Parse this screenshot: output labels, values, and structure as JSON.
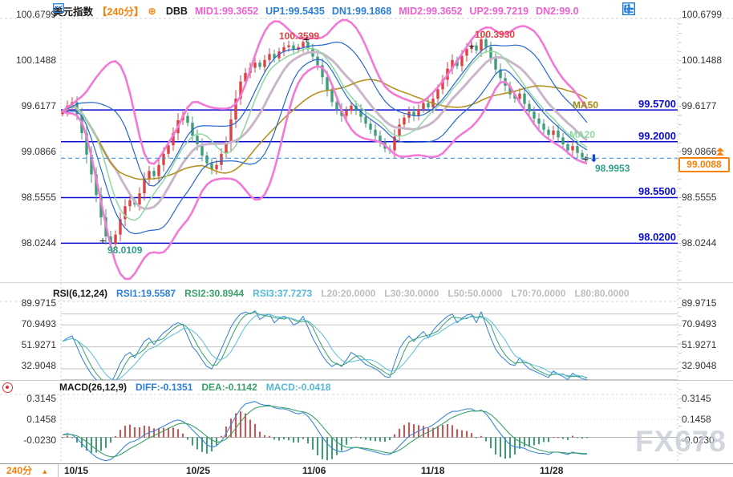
{
  "header": {
    "title": "美元指数",
    "interval": "【240分】",
    "collapse_glyph": "⊕",
    "indicator_name": "DBB",
    "mid1": "MID1:99.3652",
    "up1": "UP1:99.5435",
    "dn1": "DN1:99.1868",
    "mid2": "MID2:99.3652",
    "up2": "UP2:99.7219",
    "dn2": "DN2:99.0"
  },
  "rsi_header": {
    "name": "RSI(6,12,24)",
    "rsi1": "RSI1:19.5587",
    "rsi2": "RSI2:30.8944",
    "rsi3": "RSI3:37.7273",
    "l20": "L20:20.0000",
    "l30": "L30:30.0000",
    "l50": "L50:50.0000",
    "l70": "L70:70.0000",
    "l80": "L80:80.0000"
  },
  "macd_header": {
    "name": "MACD(26,12,9)",
    "diff": "DIFF:-0.1351",
    "dea": "DEA:-0.1142",
    "macd": "MACD:-0.0418"
  },
  "axes": {
    "main": [
      "100.6799",
      "100.1488",
      "99.6177",
      "99.0866",
      "98.5555",
      "98.0244"
    ],
    "rsi": [
      "89.9715",
      "70.9493",
      "51.9271",
      "32.9048"
    ],
    "macd": [
      "0.3145",
      "0.1458",
      "-0.0230"
    ]
  },
  "price_box": "99.0088",
  "ma_labels": {
    "ma50": "MA50",
    "ma20": "MA20"
  },
  "footer": {
    "interval": "240分",
    "arrow": "▲",
    "dates": [
      "10/15",
      "10/25",
      "11/06",
      "11/18",
      "11/28"
    ]
  },
  "watermark": "FX678",
  "colors": {
    "up": "#d84444",
    "down": "#3f9e78",
    "band_outer": "#f279d8",
    "band_inner": "#2566cf",
    "mid_band": "#c9b6c9",
    "ma50": "#b3921f",
    "ma20": "#96d8a8",
    "level_blue": "#0b0bd0",
    "current_line": "#4090e0",
    "rsi1": "#2f7fd6",
    "rsi2": "#39a06a",
    "rsi3": "#5bbcd9",
    "macd_diff": "#3a86d6",
    "macd_dea": "#3aa06a",
    "hist_pos": "#d94f4f",
    "hist_neg": "#3aa071",
    "accent_orange": "#f5820a"
  },
  "chart_data": {
    "type": "candlestick+indicators",
    "symbol": "美元指数",
    "interval": "240分",
    "x_axis": {
      "tick_labels": [
        "10/15",
        "10/25",
        "11/06",
        "11/18",
        "11/28"
      ],
      "tick_x": [
        95,
        247,
        392,
        540,
        688
      ]
    },
    "main": {
      "y_ticks": [
        100.6799,
        100.1488,
        99.6177,
        99.0866,
        98.5555,
        98.0244
      ],
      "levels": [
        {
          "value": 99.57,
          "label": "99.5700"
        },
        {
          "value": 99.2,
          "label": "99.2000"
        },
        {
          "value": 98.55,
          "label": "98.5500"
        },
        {
          "value": 98.02,
          "label": "98.0200"
        }
      ],
      "current_price": 99.0088,
      "session_low": 98.9953,
      "annotations": [
        {
          "text": "100.3599",
          "kind": "high"
        },
        {
          "text": "100.3930",
          "kind": "high"
        },
        {
          "text": "98.0109",
          "kind": "low"
        },
        {
          "text": "98.9953",
          "kind": "low"
        }
      ],
      "bollinger": {
        "mid1": 99.3652,
        "up1": 99.5435,
        "dn1": 99.1868,
        "mid2": 99.3652,
        "up2": 99.7219,
        "dn2": 99.0
      },
      "close": [
        99.55,
        99.62,
        99.66,
        99.52,
        99.3,
        99.05,
        98.82,
        98.58,
        98.32,
        98.1,
        98.01,
        98.12,
        98.3,
        98.45,
        98.52,
        98.47,
        98.6,
        98.76,
        98.86,
        98.8,
        98.93,
        99.06,
        99.16,
        99.3,
        99.45,
        99.5,
        99.42,
        99.27,
        99.17,
        99.04,
        98.95,
        98.88,
        98.93,
        99.06,
        99.2,
        99.46,
        99.7,
        99.9,
        100.0,
        100.06,
        100.12,
        100.07,
        100.15,
        100.22,
        100.17,
        100.25,
        100.3,
        100.32,
        100.27,
        100.3,
        100.36,
        100.29,
        100.19,
        100.09,
        99.95,
        99.8,
        99.66,
        99.58,
        99.5,
        99.56,
        99.62,
        99.57,
        99.49,
        99.41,
        99.34,
        99.27,
        99.2,
        99.12,
        99.1,
        99.26,
        99.4,
        99.48,
        99.55,
        99.5,
        99.58,
        99.65,
        99.6,
        99.7,
        99.81,
        99.92,
        100.05,
        100.15,
        100.08,
        100.2,
        100.28,
        100.32,
        100.26,
        100.39,
        100.3,
        100.17,
        100.04,
        99.94,
        99.85,
        99.75,
        99.7,
        99.76,
        99.64,
        99.55,
        99.47,
        99.41,
        99.34,
        99.28,
        99.33,
        99.25,
        99.17,
        99.1,
        99.15,
        99.07,
        99.02,
        99.01
      ]
    },
    "rsi": {
      "params": "(6,12,24)",
      "rsi1_last": 19.5587,
      "rsi2_last": 30.8944,
      "rsi3_last": 37.7273,
      "guide_levels": [
        20,
        30,
        50,
        70,
        80
      ],
      "y_ticks": [
        89.9715,
        70.9493,
        51.9271,
        32.9048
      ],
      "rsi1": [
        55,
        58,
        60,
        50,
        40,
        32,
        25,
        20,
        17,
        15,
        16,
        25,
        35,
        42,
        45,
        40,
        48,
        55,
        58,
        52,
        58,
        63,
        66,
        70,
        72,
        70,
        60,
        50,
        45,
        38,
        32,
        30,
        38,
        48,
        58,
        68,
        75,
        80,
        82,
        80,
        83,
        75,
        78,
        80,
        72,
        76,
        78,
        76,
        70,
        72,
        78,
        68,
        58,
        50,
        42,
        36,
        32,
        35,
        32,
        38,
        45,
        42,
        38,
        34,
        32,
        30,
        27,
        23,
        22,
        35,
        48,
        55,
        60,
        55,
        60,
        64,
        58,
        65,
        70,
        74,
        78,
        80,
        72,
        76,
        79,
        80,
        72,
        82,
        70,
        58,
        48,
        42,
        38,
        34,
        33,
        40,
        34,
        30,
        28,
        26,
        24,
        22,
        28,
        25,
        23,
        20,
        26,
        23,
        21,
        20
      ]
    },
    "macd": {
      "params": "(26,12,9)",
      "diff_last": -0.1351,
      "dea_last": -0.1142,
      "macd_last": -0.0418,
      "y_ticks": [
        0.3145,
        0.1458,
        -0.023
      ],
      "diff": [
        0.02,
        0.03,
        0.02,
        -0.01,
        -0.05,
        -0.09,
        -0.13,
        -0.16,
        -0.18,
        -0.19,
        -0.18,
        -0.15,
        -0.11,
        -0.07,
        -0.04,
        -0.03,
        -0.01,
        0.02,
        0.04,
        0.05,
        0.07,
        0.09,
        0.11,
        0.13,
        0.14,
        0.13,
        0.1,
        0.06,
        0.02,
        -0.02,
        -0.06,
        -0.08,
        -0.07,
        -0.03,
        0.03,
        0.1,
        0.17,
        0.23,
        0.27,
        0.28,
        0.29,
        0.27,
        0.26,
        0.26,
        0.24,
        0.23,
        0.23,
        0.22,
        0.2,
        0.19,
        0.2,
        0.17,
        0.12,
        0.06,
        0.0,
        -0.05,
        -0.09,
        -0.11,
        -0.12,
        -0.11,
        -0.09,
        -0.08,
        -0.09,
        -0.1,
        -0.11,
        -0.12,
        -0.13,
        -0.14,
        -0.14,
        -0.11,
        -0.07,
        -0.03,
        0.01,
        0.03,
        0.05,
        0.07,
        0.08,
        0.1,
        0.13,
        0.16,
        0.19,
        0.21,
        0.21,
        0.22,
        0.23,
        0.23,
        0.21,
        0.22,
        0.19,
        0.14,
        0.08,
        0.03,
        -0.02,
        -0.06,
        -0.08,
        -0.08,
        -0.09,
        -0.11,
        -0.12,
        -0.13,
        -0.13,
        -0.14,
        -0.12,
        -0.12,
        -0.13,
        -0.14,
        -0.12,
        -0.13,
        -0.135,
        -0.1351
      ]
    }
  }
}
